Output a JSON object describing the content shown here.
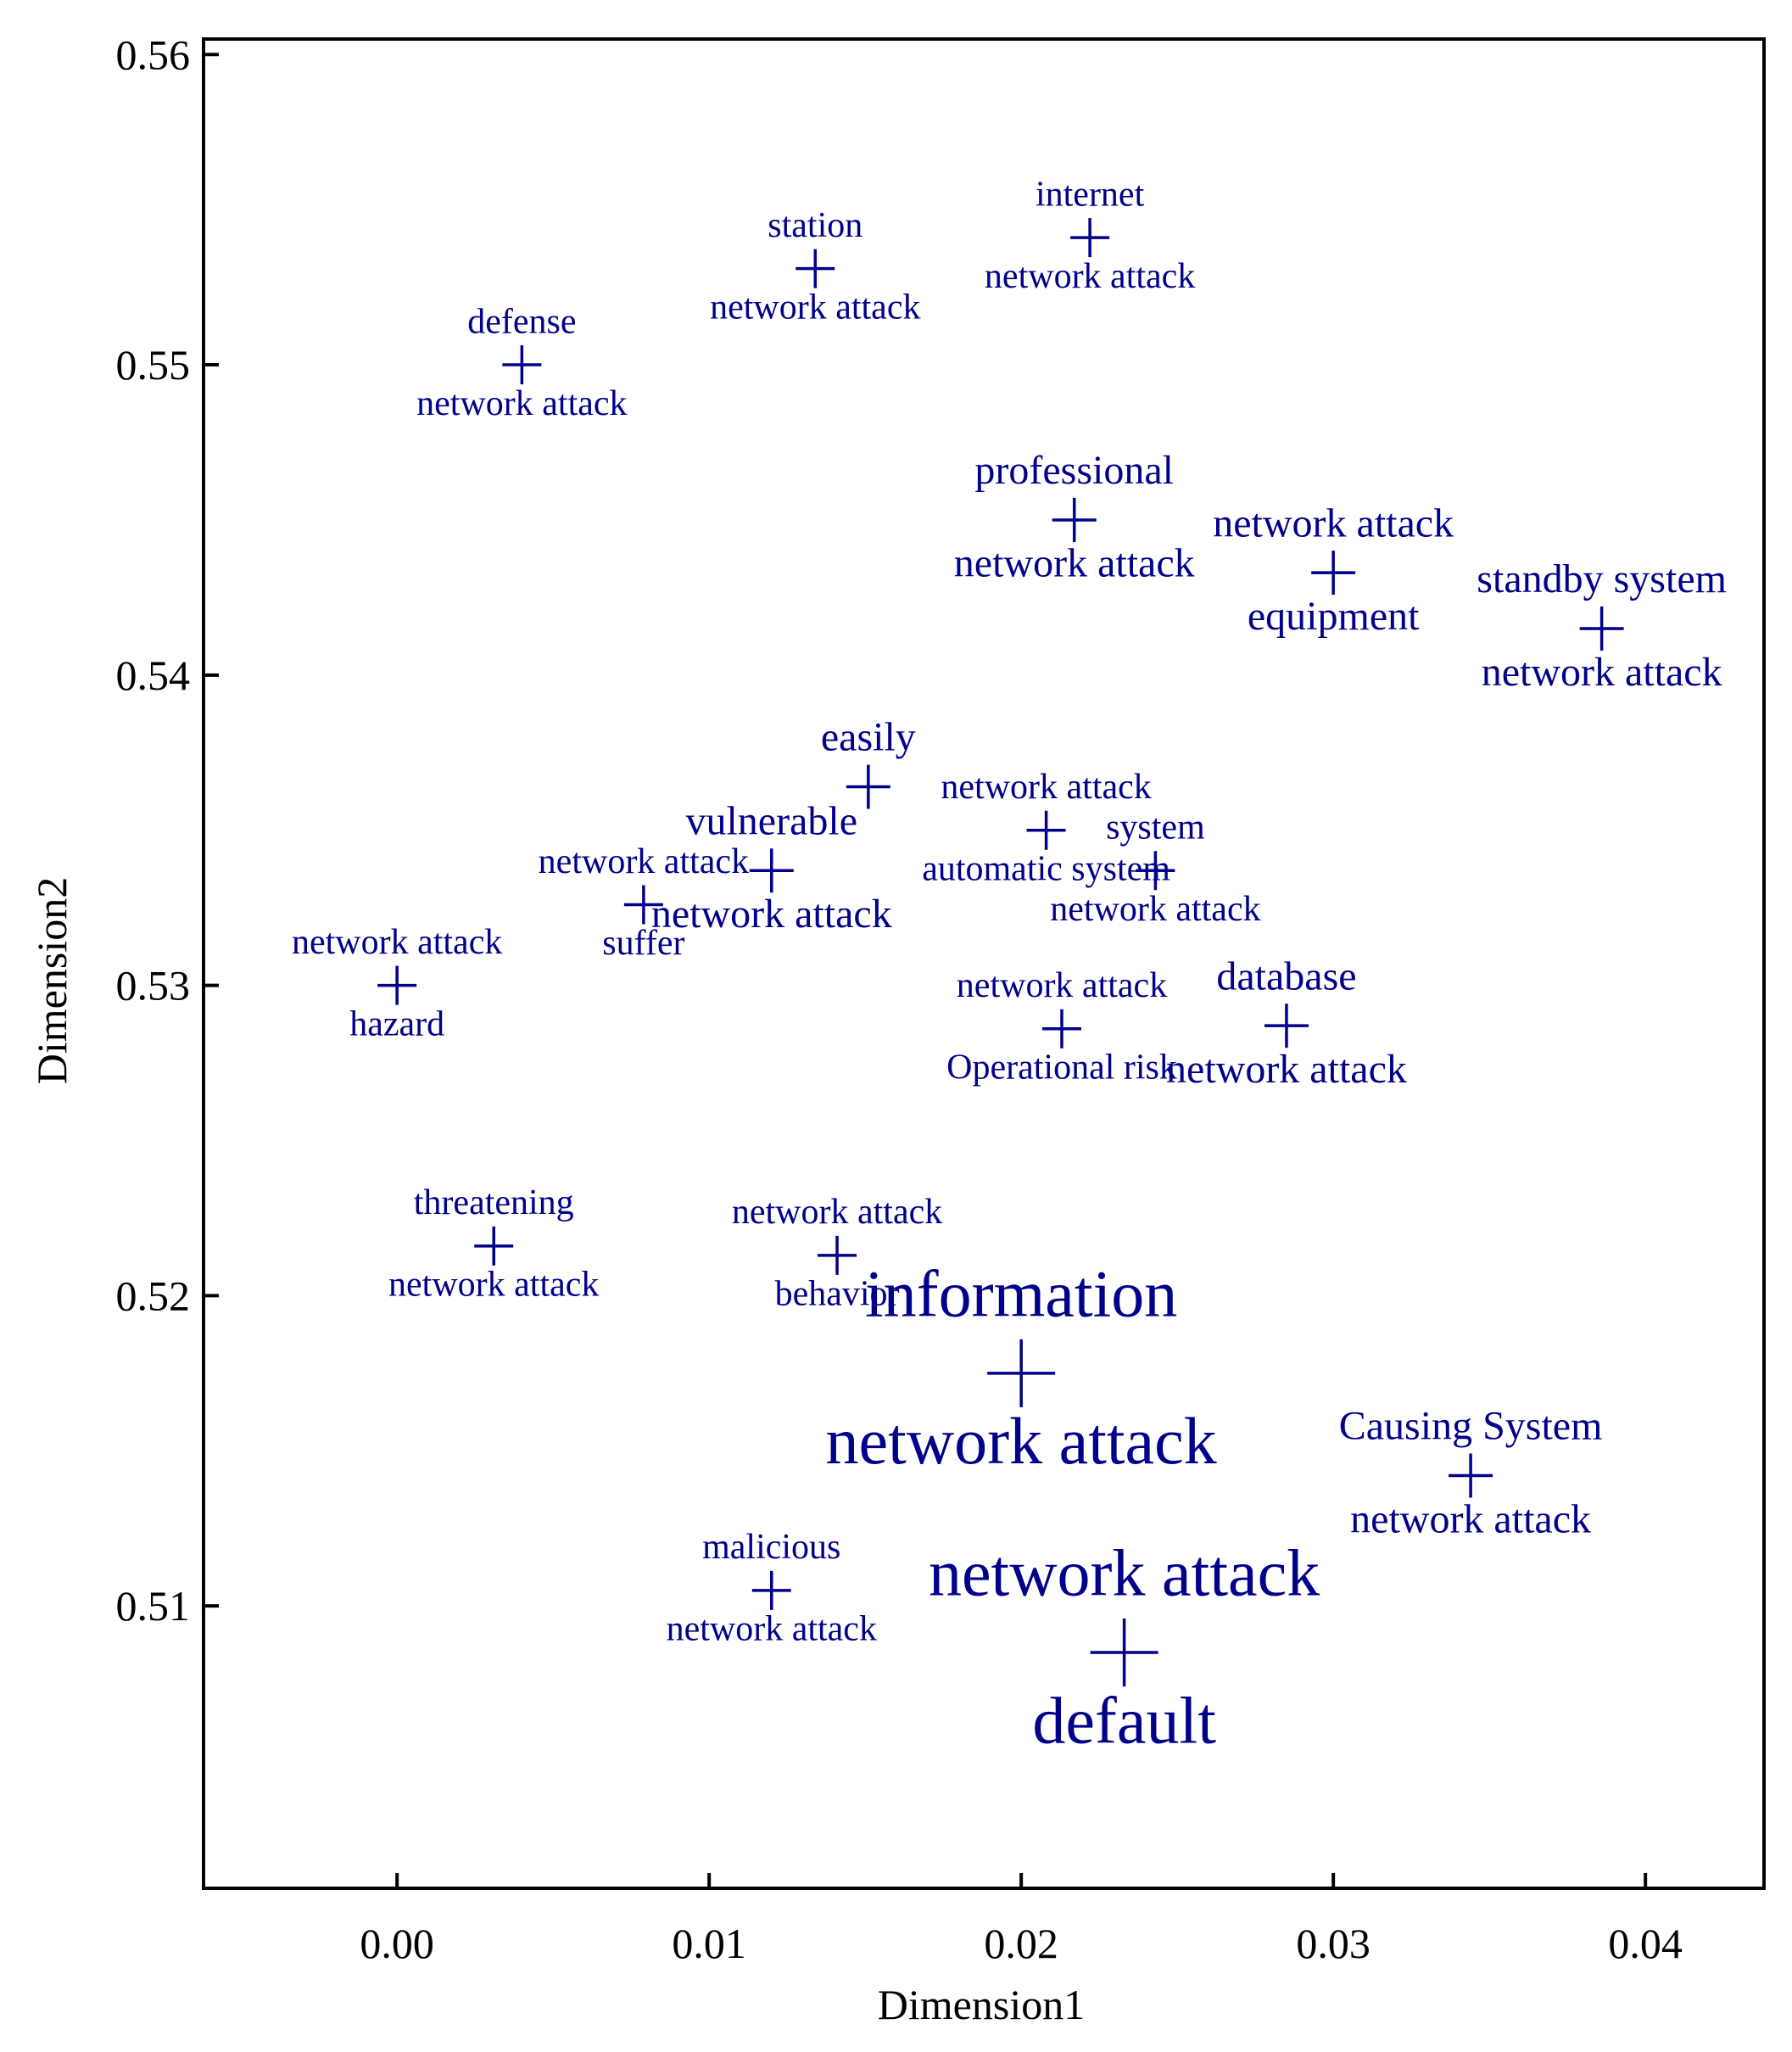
{
  "chart_data": {
    "type": "scatter",
    "xlabel": "Dimension1",
    "ylabel": "Dimension2",
    "xlim": [
      -0.0062,
      0.0438
    ],
    "ylim": [
      0.5009,
      0.5605
    ],
    "x_ticks": [
      {
        "value": 0.0,
        "label": "0.00"
      },
      {
        "value": 0.01,
        "label": "0.01"
      },
      {
        "value": 0.02,
        "label": "0.02"
      },
      {
        "value": 0.03,
        "label": "0.03"
      },
      {
        "value": 0.04,
        "label": "0.04"
      }
    ],
    "y_ticks": [
      {
        "value": 0.51,
        "label": "0.51"
      },
      {
        "value": 0.52,
        "label": "0.52"
      },
      {
        "value": 0.53,
        "label": "0.53"
      },
      {
        "value": 0.54,
        "label": "0.54"
      },
      {
        "value": 0.55,
        "label": "0.55"
      },
      {
        "value": 0.56,
        "label": "0.56"
      }
    ],
    "grid": false,
    "marker": "plus",
    "color": "#00008b",
    "points": [
      {
        "x": 0.0222,
        "y": 0.5541,
        "size": "small",
        "label_above": "internet",
        "label_below": "network attack"
      },
      {
        "x": 0.0134,
        "y": 0.5531,
        "size": "small",
        "label_above": "station",
        "label_below": "network attack"
      },
      {
        "x": 0.004,
        "y": 0.55,
        "size": "small",
        "label_above": "defense",
        "label_below": "network attack"
      },
      {
        "x": 0.0217,
        "y": 0.545,
        "size": "medium",
        "label_above": "professional",
        "label_below": "network attack"
      },
      {
        "x": 0.03,
        "y": 0.5433,
        "size": "medium",
        "label_above": "network attack",
        "label_below": "equipment"
      },
      {
        "x": 0.0386,
        "y": 0.5415,
        "size": "medium",
        "label_above": "standby system",
        "label_below": "network attack"
      },
      {
        "x": 0.0151,
        "y": 0.5364,
        "size": "medium",
        "label_above": "easily",
        "label_below": ""
      },
      {
        "x": 0.0208,
        "y": 0.535,
        "size": "small",
        "label_above": "network attack",
        "label_below": "automatic system"
      },
      {
        "x": 0.012,
        "y": 0.5337,
        "size": "medium",
        "label_above": "vulnerable",
        "label_below": "network attack"
      },
      {
        "x": 0.0243,
        "y": 0.5337,
        "size": "small",
        "label_above": "system",
        "label_below": "network attack"
      },
      {
        "x": 0.0079,
        "y": 0.5326,
        "size": "small",
        "label_above": "network attack",
        "label_below": "suffer"
      },
      {
        "x": 0.0,
        "y": 0.53,
        "size": "small",
        "label_above": "network attack",
        "label_below": "hazard"
      },
      {
        "x": 0.0213,
        "y": 0.5286,
        "size": "small",
        "label_above": "network attack",
        "label_below": "Operational risk"
      },
      {
        "x": 0.0285,
        "y": 0.5287,
        "size": "medium",
        "label_above": "database",
        "label_below": "network attack"
      },
      {
        "x": 0.0031,
        "y": 0.5216,
        "size": "small",
        "label_above": "threatening",
        "label_below": "network attack"
      },
      {
        "x": 0.0141,
        "y": 0.5213,
        "size": "small",
        "label_above": "network attack",
        "label_below": "behavior"
      },
      {
        "x": 0.02,
        "y": 0.5175,
        "size": "large",
        "label_above": "information",
        "label_below": "network attack"
      },
      {
        "x": 0.0344,
        "y": 0.5142,
        "size": "medium",
        "label_above": "Causing System",
        "label_below": "network attack"
      },
      {
        "x": 0.012,
        "y": 0.5105,
        "size": "small",
        "label_above": "malicious",
        "label_below": "network attack"
      },
      {
        "x": 0.0233,
        "y": 0.5085,
        "size": "large",
        "label_above": "network attack",
        "label_below": "default"
      }
    ]
  }
}
